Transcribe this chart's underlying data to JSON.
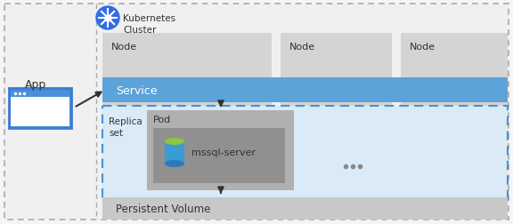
{
  "fig_width": 5.76,
  "fig_height": 2.53,
  "dpi": 100,
  "bg_outer": "#f5f5f5",
  "bg_white": "#ffffff",
  "k8s_cluster_bg": "#f0f0f0",
  "node_bg": "#d4d4d4",
  "service_bg": "#5ba3d9",
  "replica_bg": "#daeaf7",
  "pod_bg": "#b0b0b0",
  "container_bg": "#909090",
  "pv_bg": "#c8c8c8",
  "app_box_border": "#3a7bd5",
  "app_box_fill": "#4a90d9",
  "dashed_border": "#4a90d9",
  "arrow_color": "#333333",
  "text_color": "#333333",
  "k8s_color": "#326ce5",
  "title": "Kubernetes Cluster",
  "node_label": "Node",
  "service_label": "Service",
  "replica_label": "Replica\nset",
  "pod_label": "Pod",
  "mssql_label": "mssql-server",
  "pv_label": "Persistent Volume",
  "app_label": "App",
  "dots": "...",
  "service_text_color": "#ffffff"
}
